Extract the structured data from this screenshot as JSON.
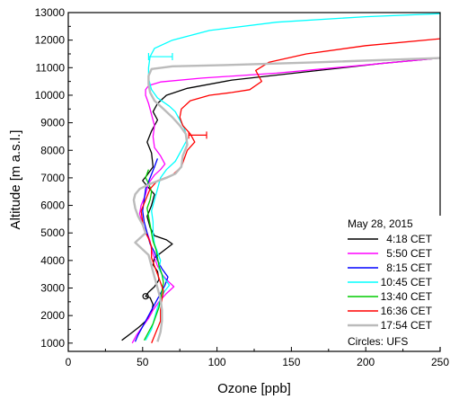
{
  "chart_data": {
    "type": "line",
    "xlabel": "Ozone [ppb]",
    "ylabel": "Altitude [m a.s.l.]",
    "xlim": [
      0,
      250
    ],
    "ylim": [
      700,
      13000
    ],
    "xticks": [
      0,
      50,
      100,
      150,
      200,
      250
    ],
    "yticks": [
      1000,
      2000,
      3000,
      4000,
      5000,
      6000,
      7000,
      8000,
      9000,
      10000,
      11000,
      12000,
      13000
    ],
    "grid": false,
    "legend": {
      "placement": "bottom-right",
      "title": "May 28, 2015",
      "footer": "Circles: UFS"
    },
    "series": [
      {
        "name": "4:18 CET",
        "color": "#000000",
        "points": [
          [
            36,
            1100
          ],
          [
            42,
            1350
          ],
          [
            48,
            1600
          ],
          [
            53,
            1850
          ],
          [
            56,
            2100
          ],
          [
            57,
            2400
          ],
          [
            55,
            2650
          ],
          [
            52,
            2700
          ],
          [
            54,
            2850
          ],
          [
            58,
            3050
          ],
          [
            61,
            3300
          ],
          [
            60,
            3600
          ],
          [
            57,
            3850
          ],
          [
            58,
            4100
          ],
          [
            64,
            4350
          ],
          [
            70,
            4600
          ],
          [
            66,
            4750
          ],
          [
            58,
            4900
          ],
          [
            55,
            5200
          ],
          [
            53,
            5600
          ],
          [
            56,
            6000
          ],
          [
            58,
            6400
          ],
          [
            53,
            6700
          ],
          [
            50,
            6900
          ],
          [
            53,
            7100
          ],
          [
            57,
            7400
          ],
          [
            56,
            7900
          ],
          [
            53,
            8300
          ],
          [
            56,
            8700
          ],
          [
            60,
            9100
          ],
          [
            57,
            9400
          ],
          [
            60,
            9700
          ],
          [
            66,
            10000
          ],
          [
            80,
            10250
          ],
          [
            110,
            10550
          ],
          [
            160,
            10850
          ],
          [
            210,
            11150
          ],
          [
            250,
            11350
          ]
        ]
      },
      {
        "name": "5:50 CET",
        "color": "#ff00ff",
        "points": [
          [
            43,
            1000
          ],
          [
            46,
            1300
          ],
          [
            50,
            1600
          ],
          [
            54,
            1900
          ],
          [
            57,
            2200
          ],
          [
            61,
            2500
          ],
          [
            66,
            2800
          ],
          [
            71,
            3050
          ],
          [
            67,
            3250
          ],
          [
            63,
            3500
          ],
          [
            60,
            3800
          ],
          [
            58,
            4100
          ],
          [
            56,
            4400
          ],
          [
            55,
            4700
          ],
          [
            53,
            5000
          ],
          [
            50,
            5300
          ],
          [
            48,
            5700
          ],
          [
            49,
            6000
          ],
          [
            52,
            6400
          ],
          [
            54,
            6800
          ],
          [
            58,
            7100
          ],
          [
            62,
            7300
          ],
          [
            65,
            7500
          ],
          [
            62,
            7800
          ],
          [
            58,
            8100
          ],
          [
            57,
            8500
          ],
          [
            58,
            8900
          ],
          [
            56,
            9300
          ],
          [
            54,
            9700
          ],
          [
            52,
            10000
          ],
          [
            52,
            10200
          ],
          [
            54,
            10350
          ],
          [
            62,
            10480
          ],
          [
            90,
            10620
          ],
          [
            140,
            10800
          ],
          [
            190,
            11050
          ],
          [
            250,
            11350
          ]
        ]
      },
      {
        "name": "8:15 CET",
        "color": "#0000ff",
        "points": [
          [
            45,
            1050
          ],
          [
            47,
            1300
          ],
          [
            50,
            1600
          ],
          [
            53,
            1900
          ],
          [
            56,
            2200
          ],
          [
            59,
            2500
          ],
          [
            62,
            2800
          ],
          [
            65,
            3100
          ],
          [
            67,
            3400
          ],
          [
            63,
            3700
          ],
          [
            60,
            4000
          ],
          [
            58,
            4300
          ],
          [
            55,
            4600
          ],
          [
            53,
            5000
          ],
          [
            51,
            5400
          ],
          [
            50,
            5800
          ],
          [
            51,
            6200
          ],
          [
            52,
            6600
          ],
          [
            55,
            7000
          ],
          [
            58,
            7400
          ],
          [
            60,
            7700
          ]
        ]
      },
      {
        "name": "10:45 CET",
        "color": "#00ffff",
        "points": [
          [
            52,
            1100
          ],
          [
            56,
            1500
          ],
          [
            58,
            1900
          ],
          [
            60,
            2300
          ],
          [
            62,
            2600
          ],
          [
            65,
            2900
          ],
          [
            68,
            3100
          ],
          [
            64,
            3400
          ],
          [
            61,
            3700
          ],
          [
            62,
            4000
          ],
          [
            60,
            4300
          ],
          [
            58,
            4600
          ],
          [
            57,
            5000
          ],
          [
            57,
            5400
          ],
          [
            56,
            5800
          ],
          [
            58,
            6200
          ],
          [
            60,
            6600
          ],
          [
            62,
            7000
          ],
          [
            66,
            7300
          ],
          [
            72,
            7600
          ],
          [
            76,
            8000
          ],
          [
            80,
            8400
          ],
          [
            78,
            8800
          ],
          [
            74,
            9200
          ],
          [
            72,
            9400
          ],
          [
            68,
            9600
          ],
          [
            60,
            9900
          ],
          [
            56,
            10200
          ],
          [
            54,
            10600
          ],
          [
            54,
            11000
          ],
          [
            55,
            11400
          ],
          [
            58,
            11700
          ],
          [
            70,
            12000
          ],
          [
            95,
            12350
          ],
          [
            140,
            12650
          ],
          [
            200,
            12850
          ],
          [
            250,
            12960
          ]
        ]
      },
      {
        "name": "13:40 CET",
        "color": "#00cc00",
        "points": [
          [
            51,
            1100
          ],
          [
            54,
            1400
          ],
          [
            57,
            1700
          ],
          [
            59,
            2000
          ],
          [
            61,
            2300
          ],
          [
            62,
            2600
          ],
          [
            63,
            2900
          ],
          [
            64,
            3200
          ],
          [
            63,
            3500
          ],
          [
            61,
            3800
          ],
          [
            60,
            4100
          ],
          [
            59,
            4400
          ],
          [
            57,
            4700
          ],
          [
            56,
            5000
          ],
          [
            55,
            5300
          ],
          [
            54,
            5600
          ],
          [
            53,
            5900
          ],
          [
            55,
            6200
          ],
          [
            56,
            6500
          ],
          [
            54,
            6800
          ],
          [
            52,
            7000
          ],
          [
            54,
            7300
          ]
        ]
      },
      {
        "name": "16:36 CET",
        "color": "#ff0000",
        "points": [
          [
            56,
            1000
          ],
          [
            59,
            1400
          ],
          [
            62,
            1800
          ],
          [
            62,
            2200
          ],
          [
            63,
            2600
          ],
          [
            64,
            2900
          ],
          [
            62,
            3200
          ],
          [
            60,
            3500
          ],
          [
            58,
            3800
          ],
          [
            56,
            4100
          ],
          [
            56,
            4500
          ],
          [
            54,
            4800
          ],
          [
            51,
            5100
          ],
          [
            50,
            5400
          ],
          [
            49,
            5800
          ],
          [
            52,
            6200
          ],
          [
            55,
            6600
          ],
          [
            60,
            6900
          ],
          [
            70,
            7100
          ],
          [
            76,
            7400
          ],
          [
            78,
            7700
          ],
          [
            80,
            8000
          ],
          [
            85,
            8300
          ],
          [
            82,
            8600
          ],
          [
            77,
            8900
          ],
          [
            75,
            9200
          ],
          [
            76,
            9500
          ],
          [
            82,
            9800
          ],
          [
            95,
            10000
          ],
          [
            110,
            10100
          ],
          [
            122,
            10200
          ],
          [
            130,
            10500
          ],
          [
            126,
            10900
          ],
          [
            135,
            11200
          ],
          [
            160,
            11500
          ],
          [
            200,
            11800
          ],
          [
            250,
            12050
          ]
        ]
      },
      {
        "name": "17:54 CET",
        "color": "#bbbbbb",
        "points": [
          [
            60,
            1050
          ],
          [
            62,
            1400
          ],
          [
            63,
            1800
          ],
          [
            63,
            2200
          ],
          [
            62,
            2600
          ],
          [
            60,
            3000
          ],
          [
            58,
            3400
          ],
          [
            56,
            3800
          ],
          [
            54,
            4200
          ],
          [
            48,
            4500
          ],
          [
            45,
            4650
          ],
          [
            48,
            4800
          ],
          [
            52,
            5000
          ],
          [
            50,
            5300
          ],
          [
            47,
            5600
          ],
          [
            45,
            5900
          ],
          [
            44,
            6200
          ],
          [
            45,
            6400
          ],
          [
            48,
            6600
          ],
          [
            56,
            6800
          ],
          [
            66,
            7000
          ],
          [
            72,
            7150
          ],
          [
            76,
            7400
          ],
          [
            77,
            7800
          ],
          [
            80,
            8200
          ],
          [
            79,
            8600
          ],
          [
            75,
            8900
          ],
          [
            70,
            9200
          ],
          [
            64,
            9500
          ],
          [
            58,
            9800
          ],
          [
            55,
            10100
          ],
          [
            54,
            10400
          ],
          [
            54,
            10700
          ],
          [
            56,
            10950
          ],
          [
            70,
            11050
          ],
          [
            110,
            11100
          ],
          [
            170,
            11200
          ],
          [
            250,
            11350
          ]
        ]
      }
    ],
    "error_bars": [
      {
        "color": "#00ffff",
        "x": 62,
        "y": 11400,
        "xerr": 8
      },
      {
        "color": "#ff0000",
        "x": 87,
        "y": 8550,
        "xerr": 6
      }
    ],
    "markers": [
      {
        "color": "#000000",
        "x": 52,
        "y": 2700
      }
    ]
  }
}
